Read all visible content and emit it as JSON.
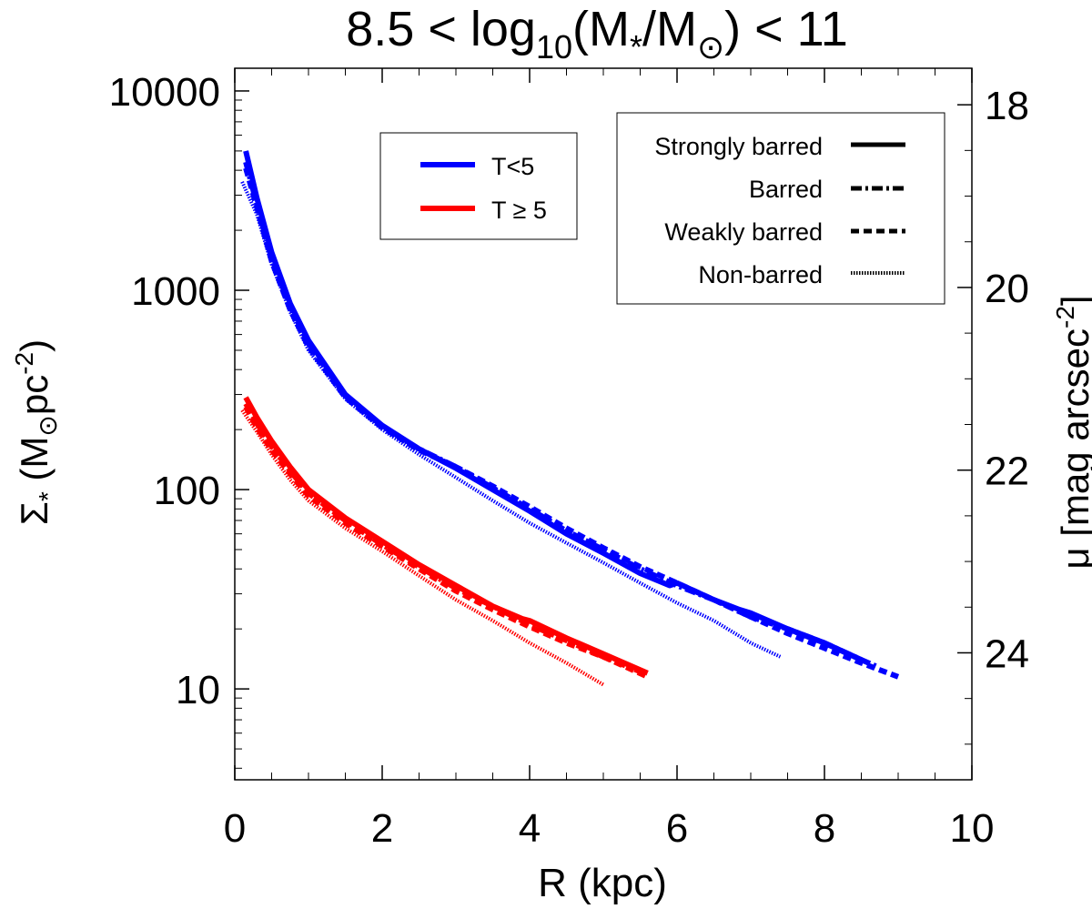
{
  "chart_data": {
    "type": "line",
    "title": {
      "base": "8.5 < log",
      "sub": "10",
      "mid": "(M",
      "star": "*",
      "slash": "/M",
      "sun": "⊙",
      "tail": ") < 11"
    },
    "xlabel": "R (kpc)",
    "ylabel": {
      "sigma": "Σ",
      "star": "*",
      "open": " (M",
      "sun": "⊙",
      "pc": "pc",
      "exp": "-2",
      "close": ")"
    },
    "y2label": {
      "main": "μ [mag arcsec",
      "exp": "-2",
      "close": "]"
    },
    "xlim": [
      0,
      10
    ],
    "ylim": [
      3.5,
      13000
    ],
    "yscale": "log",
    "y2lim": [
      25.39,
      17.6
    ],
    "x_ticks": [
      0,
      2,
      4,
      6,
      8,
      10
    ],
    "x_tick_labels": [
      "0",
      "2",
      "4",
      "6",
      "8",
      "10"
    ],
    "y_ticks": [
      10,
      100,
      1000,
      10000
    ],
    "y_tick_labels": [
      "10",
      "100",
      "1000",
      "10000"
    ],
    "y2_ticks": [
      18,
      20,
      22,
      24
    ],
    "y2_tick_labels": [
      "18",
      "20",
      "22",
      "24"
    ],
    "color_legend": [
      {
        "label": "T<5",
        "color": "#0000ff"
      },
      {
        "label": "T ≥ 5",
        "color": "#ff0000"
      }
    ],
    "style_legend": [
      {
        "label": "Strongly barred",
        "style": "solid"
      },
      {
        "label": "Barred",
        "style": "dashdot"
      },
      {
        "label": "Weakly barred",
        "style": "dashed"
      },
      {
        "label": "Non-barred",
        "style": "dotted"
      }
    ],
    "series": [
      {
        "name": "T<5 Strongly barred",
        "color": "#0000ff",
        "style": "solid",
        "x": [
          0.15,
          0.3,
          0.5,
          0.75,
          1.0,
          1.5,
          2.0,
          2.5,
          3.0,
          3.5,
          4.0,
          4.5,
          5.0,
          5.5,
          5.9,
          6.0,
          6.5,
          6.85,
          7.0,
          7.5,
          8.0,
          8.5
        ],
        "y": [
          5000,
          2900,
          1550,
          860,
          560,
          300,
          210,
          160,
          128,
          100,
          78,
          60,
          48,
          38,
          33,
          34,
          28,
          25,
          24,
          20,
          17,
          14
        ]
      },
      {
        "name": "T<5 Barred",
        "color": "#0000ff",
        "style": "dashdot",
        "x": [
          0.15,
          0.3,
          0.5,
          0.75,
          1.0,
          1.5,
          2.0,
          2.5,
          3.0,
          3.5,
          4.0,
          4.5,
          5.0,
          5.5,
          6.0,
          6.5,
          7.0,
          7.5,
          8.0,
          8.5,
          8.7
        ],
        "y": [
          4400,
          2700,
          1450,
          830,
          540,
          295,
          208,
          160,
          130,
          102,
          80,
          62,
          50,
          40,
          33,
          28,
          23,
          20,
          17,
          14,
          13
        ]
      },
      {
        "name": "T<5 Weakly barred",
        "color": "#0000ff",
        "style": "dashed",
        "x": [
          0.15,
          0.3,
          0.5,
          0.75,
          1.0,
          1.5,
          2.0,
          2.5,
          3.0,
          3.5,
          4.0,
          4.5,
          5.0,
          5.5,
          6.0,
          6.5,
          7.0,
          7.5,
          8.0,
          8.5,
          9.0
        ],
        "y": [
          4100,
          2600,
          1400,
          800,
          520,
          290,
          205,
          158,
          130,
          104,
          82,
          64,
          51,
          41,
          34,
          28,
          23,
          19,
          16,
          13.5,
          11.5
        ]
      },
      {
        "name": "T<5 Non-barred",
        "color": "#0000ff",
        "style": "dotted",
        "x": [
          0.1,
          0.3,
          0.5,
          0.75,
          1.0,
          1.5,
          2.0,
          2.5,
          3.0,
          3.5,
          4.0,
          4.5,
          5.0,
          5.5,
          6.0,
          6.5,
          7.0,
          7.4
        ],
        "y": [
          3500,
          2400,
          1350,
          780,
          500,
          285,
          200,
          150,
          115,
          88,
          68,
          54,
          43,
          34,
          27,
          22,
          17,
          14.5
        ]
      },
      {
        "name": "T≥5 Strongly barred",
        "color": "#ff0000",
        "style": "solid",
        "x": [
          0.15,
          0.3,
          0.5,
          0.75,
          1.0,
          1.5,
          2.0,
          2.5,
          3.0,
          3.5,
          3.9,
          4.0,
          4.5,
          5.0,
          5.6
        ],
        "y": [
          290,
          230,
          175,
          130,
          100,
          72,
          55,
          42,
          33,
          26,
          22.5,
          22,
          18,
          15,
          12
        ]
      },
      {
        "name": "T≥5 Barred",
        "color": "#ff0000",
        "style": "dashdot",
        "x": [
          0.15,
          0.3,
          0.5,
          0.75,
          1.0,
          1.5,
          2.0,
          2.5,
          3.0,
          3.5,
          4.0,
          4.5,
          5.0,
          5.6
        ],
        "y": [
          270,
          215,
          165,
          124,
          96,
          70,
          53,
          41,
          32,
          26,
          21,
          17.5,
          14.5,
          11.8
        ]
      },
      {
        "name": "T≥5 Weakly barred",
        "color": "#ff0000",
        "style": "dashed",
        "x": [
          0.15,
          0.3,
          0.5,
          0.75,
          1.0,
          1.5,
          2.0,
          2.5,
          3.0,
          3.5,
          4.0,
          4.5,
          5.0,
          5.6
        ],
        "y": [
          260,
          205,
          158,
          120,
          93,
          68,
          52,
          40,
          31,
          25,
          20.5,
          17,
          14.5,
          11.5
        ]
      },
      {
        "name": "T≥5 Non-barred",
        "color": "#ff0000",
        "style": "dotted",
        "x": [
          0.1,
          0.3,
          0.5,
          0.75,
          1.0,
          1.5,
          2.0,
          2.5,
          3.0,
          3.5,
          4.0,
          4.5,
          5.0
        ],
        "y": [
          250,
          195,
          150,
          112,
          88,
          64,
          49,
          37,
          28,
          22,
          17,
          13.5,
          10.5
        ]
      }
    ]
  }
}
